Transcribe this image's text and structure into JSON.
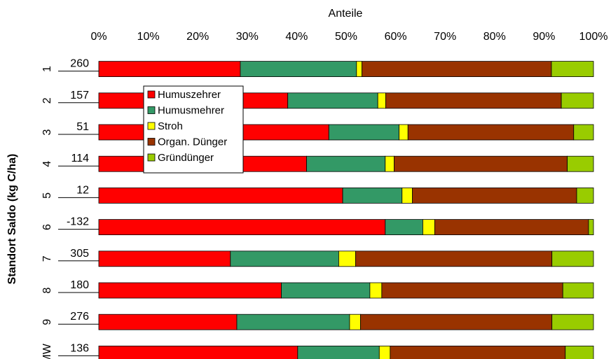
{
  "chart_data": {
    "type": "bar",
    "orientation": "horizontal",
    "stacked": "percent",
    "title": "",
    "xlabel": "Anteile",
    "ylabel": "Standort Saldo (kg C/ha)",
    "xlim": [
      0,
      100
    ],
    "x_ticks": [
      "0%",
      "10%",
      "20%",
      "30%",
      "40%",
      "50%",
      "60%",
      "70%",
      "80%",
      "90%",
      "100%"
    ],
    "x_axis_position": "top",
    "grid": false,
    "legend_position": "upper-left inside plot",
    "categories": [
      "1",
      "2",
      "3",
      "4",
      "5",
      "6",
      "7",
      "8",
      "9",
      "MW"
    ],
    "saldo": [
      "260",
      "157",
      "51",
      "114",
      "12",
      "-132",
      "305",
      "180",
      "276",
      "136"
    ],
    "series": [
      {
        "name": "Humuszehrer",
        "color": "#ff0000",
        "values": [
          28.6,
          38.2,
          46.5,
          42.0,
          49.3,
          57.9,
          26.6,
          36.9,
          27.9,
          40.2
        ]
      },
      {
        "name": "Humusmehrer",
        "color": "#339966",
        "values": [
          23.5,
          18.2,
          14.2,
          15.9,
          12.0,
          7.6,
          21.9,
          17.9,
          22.8,
          16.5
        ]
      },
      {
        "name": "Stroh",
        "color": "#ffff00",
        "values": [
          1.1,
          1.6,
          1.8,
          1.8,
          2.1,
          2.4,
          3.4,
          2.4,
          2.2,
          2.2
        ]
      },
      {
        "name": "Organ. Dünger",
        "color": "#993300",
        "values": [
          38.3,
          35.5,
          33.5,
          35.0,
          33.2,
          31.1,
          39.7,
          36.6,
          38.7,
          35.4
        ]
      },
      {
        "name": "Gründünger",
        "color": "#99cc00",
        "values": [
          8.5,
          6.5,
          4.0,
          5.3,
          3.4,
          1.0,
          8.4,
          6.2,
          8.4,
          5.7
        ]
      }
    ]
  }
}
